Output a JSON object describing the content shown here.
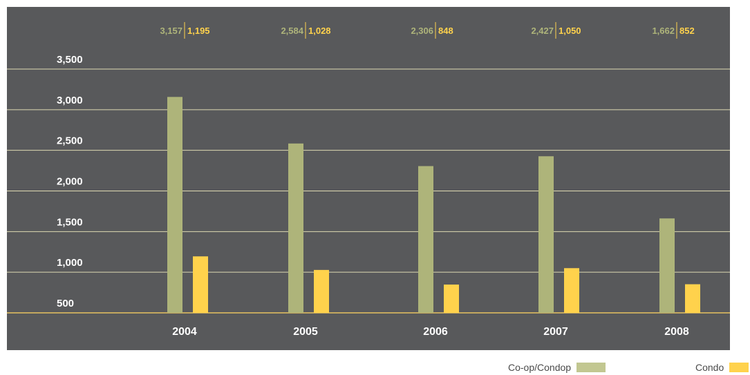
{
  "chart_data": {
    "type": "bar",
    "title": "",
    "xlabel": "",
    "ylabel": "",
    "categories": [
      "2004",
      "2005",
      "2006",
      "2007",
      "2008"
    ],
    "series": [
      {
        "name": "Co-op/Condop",
        "values": [
          3157,
          2584,
          2306,
          2427,
          1662
        ],
        "labels": [
          "3,157",
          "2,584",
          "2,306",
          "2,427",
          "1,662"
        ]
      },
      {
        "name": "Condo",
        "values": [
          1195,
          1028,
          848,
          1050,
          852
        ],
        "labels": [
          "1,195",
          "1,028",
          "848",
          "1,050",
          "852"
        ]
      }
    ],
    "y_ticks": [
      500,
      1000,
      1500,
      2000,
      2500,
      3000,
      3500
    ],
    "y_tick_labels": [
      "500",
      "1,000",
      "1,500",
      "2,000",
      "2,500",
      "3,000",
      "3,500"
    ],
    "ylim": [
      500,
      3500
    ],
    "grid": true,
    "legend_position": "bottom-right",
    "value_labels_position": "top"
  },
  "colors": {
    "background": "#58595b",
    "coop": "#aeb47a",
    "condo": "#ffd24c",
    "text": "#ffffff",
    "grid": "#e7e1b8",
    "legend_text": "#4a4a4a"
  }
}
